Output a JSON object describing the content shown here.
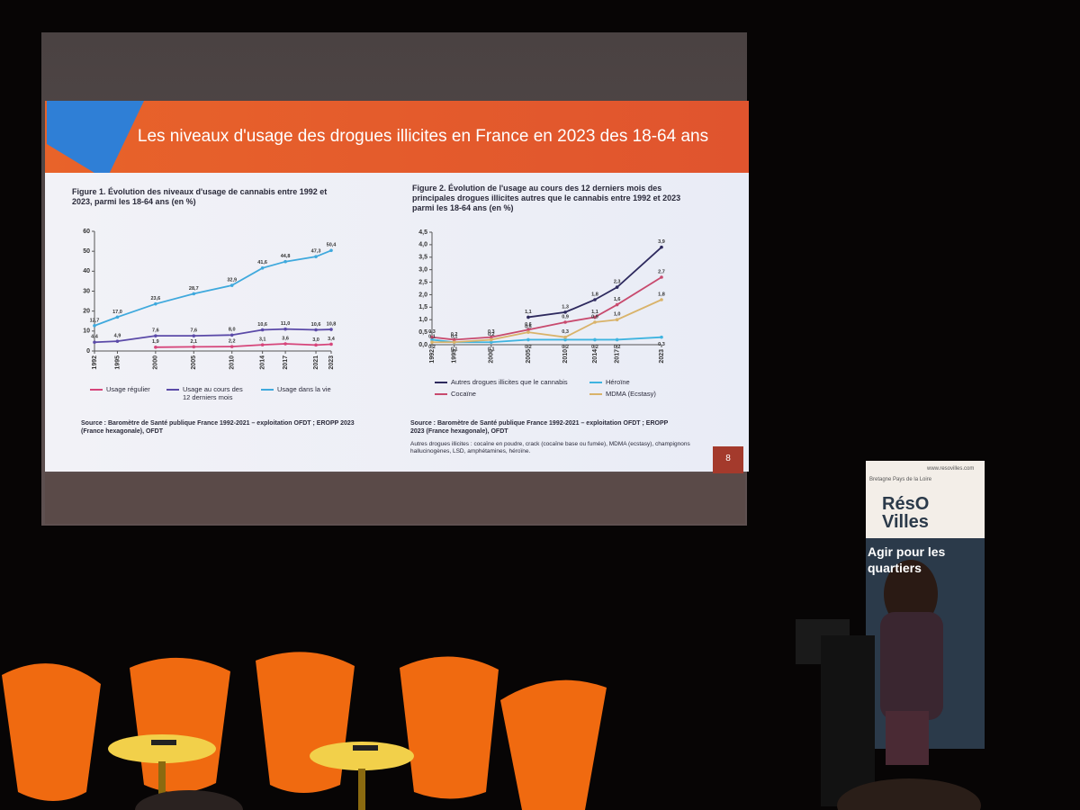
{
  "slide": {
    "title": "Les niveaux d'usage des drogues illicites en France en 2023 des 18-64 ans",
    "page_number": "8",
    "note": "Autres drogues illicites : cocaïne en poudre, crack (cocaïne base ou fumée), MDMA (ecstasy), champignons hallucinogènes, LSD, amphétamines, héroïne."
  },
  "chart_data": [
    {
      "type": "line",
      "title": "Figure 1. Évolution des niveaux d'usage de cannabis entre 1992 et 2023, parmi les 18-64 ans (en %)",
      "source": "Source : Baromètre de Santé publique France 1992-2021 – exploitation OFDT ; EROPP 2023 (France hexagonale), OFDT",
      "x": [
        1992,
        1995,
        2000,
        2005,
        2010,
        2014,
        2017,
        2021,
        2023
      ],
      "xlim": [
        1992,
        2023
      ],
      "xticks": [
        1992,
        1995,
        2000,
        2005,
        2010,
        2014,
        2017,
        2021,
        2023
      ],
      "ylim": [
        0,
        60
      ],
      "yticks": [
        0,
        10,
        20,
        30,
        40,
        50,
        60
      ],
      "series": [
        {
          "name": "Usage régulier",
          "color": "#d6457a",
          "values": [
            null,
            null,
            1.9,
            2.1,
            2.2,
            3.1,
            3.6,
            3.0,
            3.4
          ],
          "value_labels": [
            null,
            null,
            "1,9",
            "2,1",
            "2,2",
            "3,1",
            "3,6",
            "3,0",
            "3,4"
          ]
        },
        {
          "name": "Usage au cours des 12 derniers mois",
          "color": "#5b4aa8",
          "values": [
            4.4,
            4.9,
            7.6,
            7.6,
            8.0,
            10.6,
            11.0,
            10.6,
            10.8
          ],
          "value_labels": [
            "4,4",
            "4,9",
            "7,6",
            "7,6",
            "8,0",
            "10,6",
            "11,0",
            "10,6",
            "10,8"
          ]
        },
        {
          "name": "Usage dans la vie",
          "color": "#3fa9dd",
          "values": [
            12.7,
            17.0,
            23.6,
            28.7,
            32.9,
            41.6,
            44.8,
            47.3,
            50.4
          ],
          "value_labels": [
            "12,7",
            "17,0",
            "23,6",
            "28,7",
            "32,9",
            "41,6",
            "44,8",
            "47,3",
            "50,4"
          ]
        }
      ]
    },
    {
      "type": "line",
      "title": "Figure 2. Évolution de l'usage au cours des 12 derniers mois des principales drogues illicites autres que le cannabis entre 1992 et 2023 parmi les 18-64 ans (en %)",
      "source": "Source : Baromètre de Santé publique France 1992-2021 – exploitation OFDT ; EROPP 2023 (France hexagonale), OFDT",
      "x": [
        1992,
        1995,
        2000,
        2005,
        2010,
        2014,
        2017,
        2023
      ],
      "xlim": [
        1992,
        2023
      ],
      "xticks": [
        1992,
        1995,
        2000,
        2005,
        2010,
        2014,
        2017,
        2023
      ],
      "ylim": [
        0,
        4.5
      ],
      "yticks": [
        {
          "value": 0,
          "label": "0,0"
        },
        {
          "value": 0.5,
          "label": "0,5"
        },
        {
          "value": 1,
          "label": "1,0"
        },
        {
          "value": 1.5,
          "label": "1,5"
        },
        {
          "value": 2,
          "label": "2,0"
        },
        {
          "value": 2.5,
          "label": "2,5"
        },
        {
          "value": 3,
          "label": "3,0"
        },
        {
          "value": 3.5,
          "label": "3,5"
        },
        {
          "value": 4,
          "label": "4,0"
        },
        {
          "value": 4.5,
          "label": "4,5"
        }
      ],
      "series": [
        {
          "name": "Autres drogues illicites que le cannabis",
          "color": "#2e2a5e",
          "values": [
            null,
            null,
            null,
            1.1,
            1.3,
            1.8,
            2.3,
            3.9
          ],
          "value_labels": [
            null,
            null,
            null,
            "1,1",
            "1,3",
            "1,8",
            "2,3",
            "3,9"
          ]
        },
        {
          "name": "Héroïne",
          "color": "#3fb4e0",
          "values": [
            0.2,
            0.1,
            0.1,
            0.2,
            0.2,
            0.2,
            0.2,
            0.3
          ],
          "value_labels": [
            "0,2",
            "0,1",
            "0,1",
            "0,2",
            "0,2",
            "0,2",
            "0,2",
            "0,3"
          ]
        },
        {
          "name": "Cocaïne",
          "color": "#c84a6e",
          "values": [
            0.3,
            0.2,
            0.3,
            0.6,
            0.9,
            1.1,
            1.6,
            2.7
          ],
          "value_labels": [
            "0,3",
            "0,2",
            "0,3",
            "0,6",
            "0,9",
            "1,1",
            "1,6",
            "2,7"
          ]
        },
        {
          "name": "MDMA (Ecstasy)",
          "color": "#d9b36a",
          "values": [
            0.1,
            0.1,
            0.2,
            0.5,
            0.3,
            0.9,
            1.0,
            1.8
          ],
          "value_labels": [
            "0,1",
            "0,1",
            "0,2",
            "0,5",
            "0,3",
            "0,9",
            "1,0",
            "1,8"
          ]
        }
      ]
    }
  ],
  "banner": {
    "region": "Bretagne Pays de la Loire",
    "brand": "RésO Villes",
    "url": "www.resovilles.com",
    "slogan": "Agir pour les quartiers"
  }
}
